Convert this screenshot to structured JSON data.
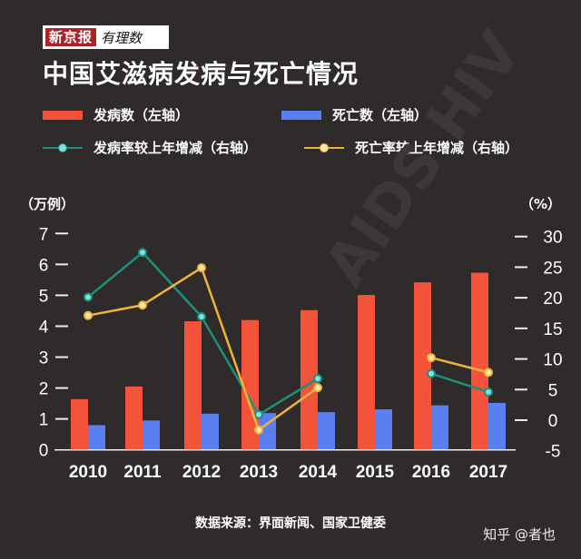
{
  "logo": {
    "brand": "新京报",
    "column": "有理数"
  },
  "title": "中国艾滋病发病与死亡情况",
  "legend": [
    {
      "label": "发病数（左轴）",
      "type": "bar",
      "color": "#f2533a"
    },
    {
      "label": "死亡数（左轴）",
      "type": "bar",
      "color": "#5a7ff0"
    },
    {
      "label": "发病率较上年增减（右轴）",
      "type": "line",
      "color": "#1e8f7e",
      "dot": "#7fe3e0"
    },
    {
      "label": "死亡率较上年增减（右轴）",
      "type": "line",
      "color": "#f2b33d",
      "dot": "#fbe7a8"
    }
  ],
  "axes": {
    "left_unit": "（万例）",
    "right_unit": "（%）"
  },
  "source": "数据来源：界面新闻、国家卫健委",
  "watermark": "知乎 @者也",
  "background_watermark": "AIDS HIV",
  "chart_data": {
    "type": "bar",
    "title": "中国艾滋病发病与死亡情况",
    "categories": [
      "2010",
      "2011",
      "2012",
      "2013",
      "2014",
      "2015",
      "2016",
      "2017"
    ],
    "series": [
      {
        "name": "发病数",
        "axis": "left",
        "kind": "bar",
        "color": "#f2533a",
        "values": [
          1.64,
          2.05,
          4.16,
          4.2,
          4.52,
          5.01,
          5.42,
          5.73
        ]
      },
      {
        "name": "死亡数",
        "axis": "left",
        "kind": "bar",
        "color": "#5a7ff0",
        "values": [
          0.8,
          0.95,
          1.17,
          1.19,
          1.22,
          1.31,
          1.44,
          1.52
        ]
      },
      {
        "name": "发病率较上年增减",
        "axis": "right",
        "kind": "line",
        "color": "#1e8f7e",
        "values": [
          20.1,
          27.4,
          16.9,
          0.9,
          6.8,
          null,
          7.6,
          4.6
        ]
      },
      {
        "name": "死亡率较上年增减",
        "axis": "right",
        "kind": "line",
        "color": "#f2b33d",
        "values": [
          17.1,
          18.8,
          24.9,
          -1.6,
          5.3,
          null,
          10.2,
          7.8
        ]
      }
    ],
    "ylabel": "万例",
    "ylabel_right": "%",
    "ylim": [
      0,
      7
    ],
    "ylim_right": [
      -5,
      30
    ],
    "yticks": [
      0,
      1,
      2,
      3,
      4,
      5,
      6,
      7
    ],
    "yticks_right": [
      -5,
      0,
      5,
      10,
      15,
      20,
      25,
      30
    ],
    "grid": false,
    "legend_position": "top"
  }
}
